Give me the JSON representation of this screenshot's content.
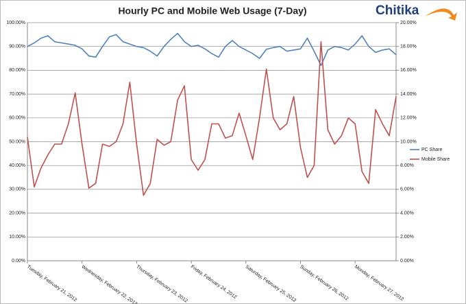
{
  "chart_data": {
    "type": "line",
    "title": "Hourly PC and Mobile Web Usage (7-Day)",
    "logo": "Chitika",
    "categories": [
      "Tuesday, February 21, 2012",
      null,
      null,
      null,
      null,
      null,
      null,
      null,
      "Wednesday, February 22, 2012",
      null,
      null,
      null,
      null,
      null,
      null,
      null,
      "Thursday, February 23, 2012",
      null,
      null,
      null,
      null,
      null,
      null,
      null,
      "Friday, February 24, 2012",
      null,
      null,
      null,
      null,
      null,
      null,
      null,
      "Saturday, February 25, 2012",
      null,
      null,
      null,
      null,
      null,
      null,
      null,
      "Sunday, February 26, 2012",
      null,
      null,
      null,
      null,
      null,
      null,
      null,
      "Monday, February 27, 2012",
      null,
      null,
      null,
      null,
      null,
      null
    ],
    "series": [
      {
        "name": "PC Share",
        "color": "#4f81bd",
        "axis": "y",
        "values": [
          90,
          91.5,
          93.5,
          94.5,
          92,
          91.5,
          91,
          90.5,
          89,
          86,
          85.5,
          90,
          94,
          95,
          92,
          91,
          90,
          89.5,
          88,
          86,
          90,
          93,
          95.5,
          92,
          90,
          90.5,
          89,
          87,
          85.5,
          90,
          92.5,
          90,
          88.5,
          87,
          85,
          88.8,
          89.5,
          90,
          88,
          88.5,
          89,
          93.5,
          88,
          82,
          88.5,
          90,
          89.5,
          88.5,
          91,
          94.5,
          90,
          87.5,
          88.5,
          89,
          86.5
        ]
      },
      {
        "name": "Mobile Share",
        "color": "#c0504d",
        "axis": "y2",
        "values": [
          10.4,
          6.2,
          7.8,
          8.9,
          9.8,
          9.8,
          11.5,
          14.1,
          9.8,
          6.1,
          6.5,
          9.8,
          9.6,
          10.0,
          11.5,
          15.0,
          9.8,
          5.5,
          6.5,
          10.2,
          9.7,
          10.0,
          13.5,
          14.7,
          8.5,
          7.6,
          8.5,
          11.5,
          11.5,
          10.3,
          10.5,
          12.4,
          10.5,
          8.5,
          12.0,
          16.1,
          12.0,
          11.0,
          11.5,
          13.8,
          9.5,
          7.0,
          8.0,
          18.4,
          11.0,
          9.8,
          10.5,
          12.0,
          11.5,
          7.5,
          6.5,
          12.7,
          11.5,
          10.5,
          13.8
        ]
      }
    ],
    "ylim": [
      0,
      100
    ],
    "yticks": [
      {
        "value": 0,
        "label": "0.00%"
      },
      {
        "value": 10,
        "label": "10.00%"
      },
      {
        "value": 20,
        "label": "20.00%"
      },
      {
        "value": 30,
        "label": "30.00%"
      },
      {
        "value": 40,
        "label": "40.00%"
      },
      {
        "value": 50,
        "label": "50.00%"
      },
      {
        "value": 60,
        "label": "60.00%"
      },
      {
        "value": 70,
        "label": "70.00%"
      },
      {
        "value": 80,
        "label": "80.00%"
      },
      {
        "value": 90,
        "label": "90.00%"
      },
      {
        "value": 100,
        "label": "100.00%"
      }
    ],
    "y2lim": [
      0,
      20
    ],
    "y2ticks": [
      {
        "value": 0,
        "label": "0.00%"
      },
      {
        "value": 2,
        "label": "2.00%"
      },
      {
        "value": 4,
        "label": "4.00%"
      },
      {
        "value": 6,
        "label": "6.00%"
      },
      {
        "value": 8,
        "label": "8.00%"
      },
      {
        "value": 10,
        "label": "10.00%"
      },
      {
        "value": 12,
        "label": "12.00%"
      },
      {
        "value": 14,
        "label": "14.00%"
      },
      {
        "value": 16,
        "label": "16.00%"
      },
      {
        "value": 18,
        "label": "18.00%"
      },
      {
        "value": 20,
        "label": "20.00%"
      }
    ],
    "grid": true,
    "legend": "right"
  }
}
